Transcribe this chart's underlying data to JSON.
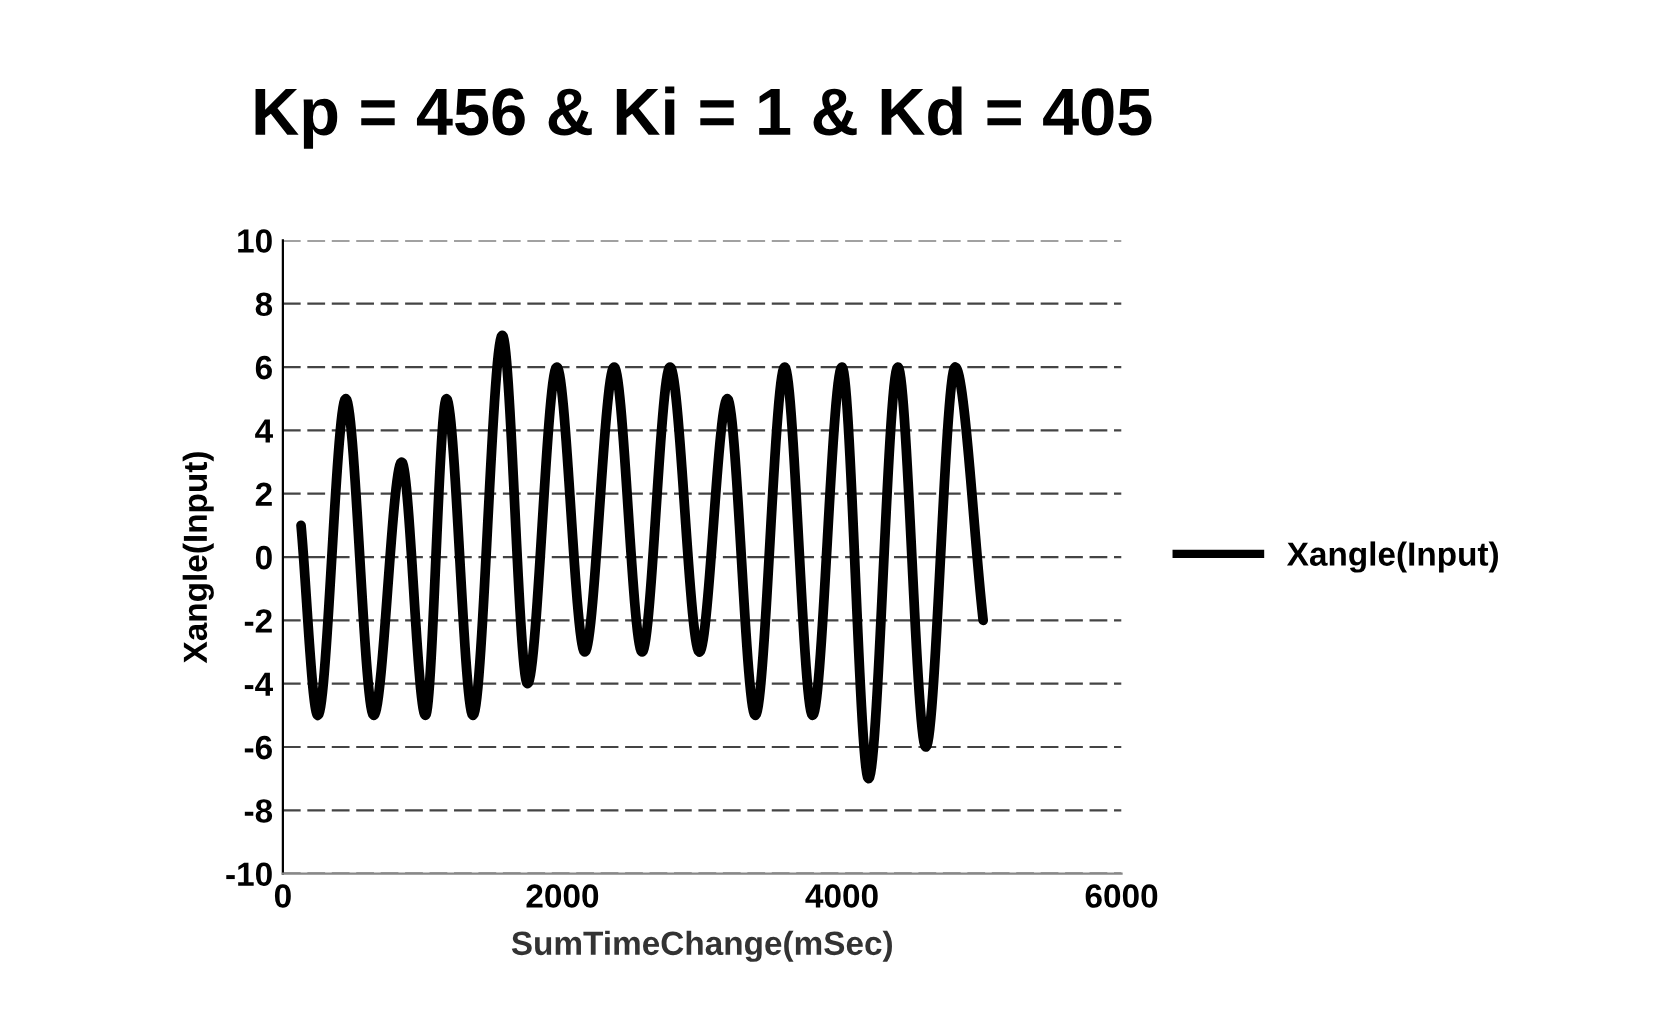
{
  "chart_data": {
    "type": "line",
    "title": "Kp = 456 & Ki = 1 & Kd = 405",
    "xlabel": "SumTimeChange(mSec)",
    "ylabel": "Xangle(Input)",
    "x": [
      130,
      250,
      450,
      650,
      850,
      1020,
      1170,
      1360,
      1570,
      1750,
      1960,
      2160,
      2370,
      2570,
      2770,
      2980,
      3180,
      3380,
      3590,
      3790,
      4000,
      4190,
      4400,
      4600,
      4810,
      5010
    ],
    "series": [
      {
        "name": "Xangle(Input)",
        "color": "#000000",
        "values": [
          1,
          -5,
          5,
          -5,
          3,
          -5,
          5,
          -5,
          7,
          -4,
          6,
          -3,
          6,
          -3,
          6,
          -3,
          5,
          -5,
          6,
          -5,
          6,
          -7,
          6,
          -6,
          6,
          -2
        ]
      }
    ],
    "xlim": [
      0,
      6000
    ],
    "xticks": [
      0,
      2000,
      4000,
      6000
    ],
    "ylim": [
      -10,
      10
    ],
    "yticks": [
      -10,
      -8,
      -6,
      -4,
      -2,
      0,
      2,
      4,
      6,
      8,
      10
    ],
    "grid": "y",
    "legend": "right",
    "marker": "none",
    "line_style": "solid"
  }
}
